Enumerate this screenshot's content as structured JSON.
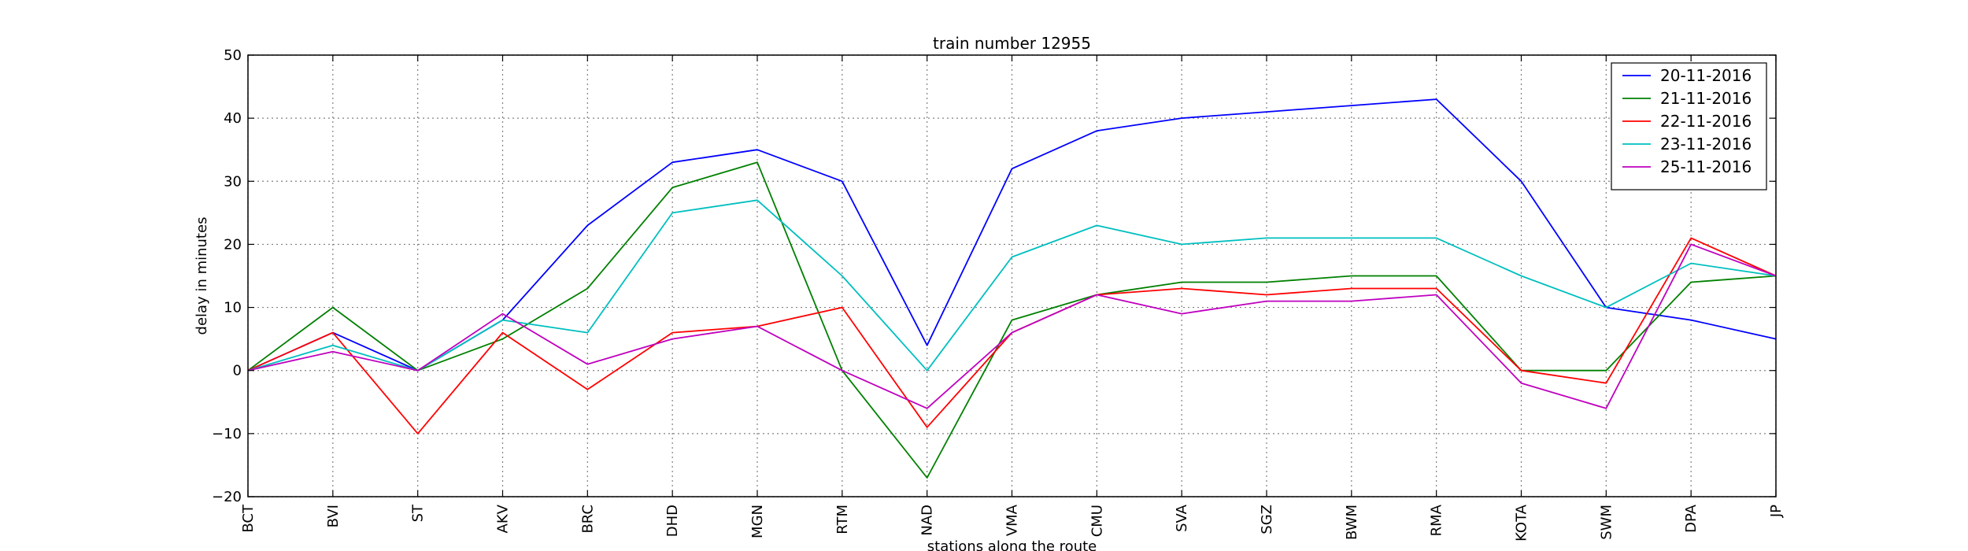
{
  "chart_data": {
    "type": "line",
    "title": "train number 12955",
    "xlabel": "stations along the route",
    "ylabel": "delay in minutes",
    "categories": [
      "BCT",
      "BVI",
      "ST",
      "AKV",
      "BRC",
      "DHD",
      "MGN",
      "RTM",
      "NAD",
      "VMA",
      "CMU",
      "SVA",
      "SGZ",
      "BWM",
      "RMA",
      "KOTA",
      "SWM",
      "DPA",
      "JP"
    ],
    "ylim": [
      -20,
      50
    ],
    "yticks": [
      -20,
      -10,
      0,
      10,
      20,
      30,
      40,
      50
    ],
    "ytick_labels": [
      "−20",
      "−10",
      "0",
      "10",
      "20",
      "30",
      "40",
      "50"
    ],
    "grid": true,
    "legend_position": "top-right",
    "series": [
      {
        "name": "20-11-2016",
        "color": "#0000ff",
        "values": [
          0,
          6,
          0,
          8,
          23,
          33,
          35,
          30,
          4,
          32,
          38,
          40,
          41,
          42,
          43,
          30,
          10,
          8,
          5
        ]
      },
      {
        "name": "21-11-2016",
        "color": "#008000",
        "values": [
          0,
          10,
          0,
          5,
          13,
          29,
          33,
          0,
          -17,
          8,
          12,
          14,
          14,
          15,
          15,
          0,
          0,
          14,
          15
        ]
      },
      {
        "name": "22-11-2016",
        "color": "#ff0000",
        "values": [
          0,
          6,
          -10,
          6,
          -3,
          6,
          7,
          10,
          -9,
          6,
          12,
          13,
          12,
          13,
          13,
          0,
          -2,
          21,
          15
        ]
      },
      {
        "name": "23-11-2016",
        "color": "#00bfbf",
        "values": [
          0,
          4,
          0,
          8,
          6,
          25,
          27,
          15,
          0,
          18,
          23,
          20,
          21,
          21,
          21,
          15,
          10,
          17,
          15
        ]
      },
      {
        "name": "25-11-2016",
        "color": "#bf00bf",
        "values": [
          0,
          3,
          0,
          9,
          1,
          5,
          7,
          0,
          -6,
          6,
          12,
          9,
          11,
          11,
          12,
          -2,
          -6,
          20,
          15
        ]
      }
    ]
  }
}
